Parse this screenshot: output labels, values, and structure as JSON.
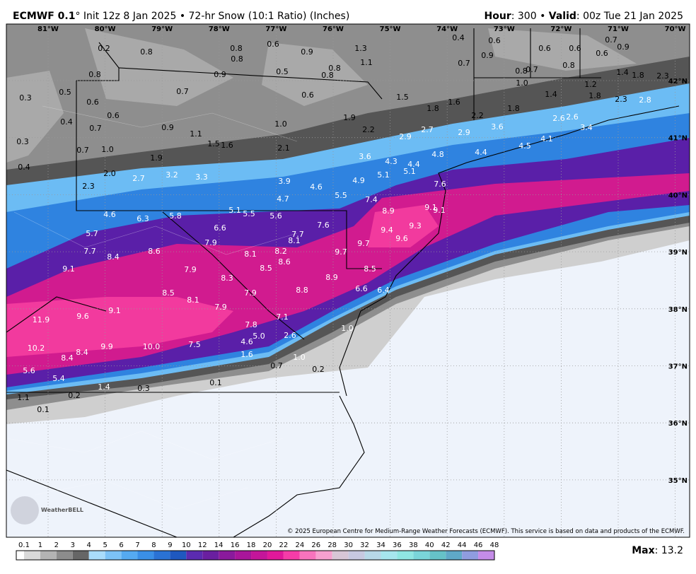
{
  "header": {
    "model": "ECMWF 0.1",
    "details": "° Init 12z 8 Jan 2025 • 72-hr Snow (10:1 Ratio) (Inches)",
    "hour_label": "Hour",
    "hour_value": ": 300 • ",
    "valid_label": "Valid",
    "valid_value": ": 00z Tue 21 Jan 2025"
  },
  "longitudes": [
    "81°W",
    "80°W",
    "79°W",
    "78°W",
    "77°W",
    "76°W",
    "75°W",
    "74°W",
    "73°W",
    "72°W",
    "71°W",
    "70°W"
  ],
  "latitudes": [
    "42°N",
    "41°N",
    "40°N",
    "39°N",
    "38°N",
    "37°N",
    "36°N",
    "35°N"
  ],
  "snow_totals": [
    "0.2",
    "0.8",
    "0.8",
    "0.6",
    "0.8",
    "0.9",
    "1.3",
    "0.4",
    "0.6",
    "0.6",
    "0.6",
    "0.7",
    "0.9",
    "0.6",
    "0.9",
    "0.7",
    "1.1",
    "0.8",
    "0.8",
    "0.5",
    "0.9",
    "0.8",
    "0.8",
    "0.7",
    "0.8",
    "1.4",
    "1.8",
    "2.3",
    "0.3",
    "0.5",
    "0.6",
    "0.7",
    "0.6",
    "1.5",
    "1.0",
    "1.2",
    "1.4",
    "1.8",
    "2.3",
    "2.8",
    "1.6",
    "1.8",
    "1.8",
    "0.6",
    "0.4",
    "0.7",
    "0.9",
    "1.0",
    "1.9",
    "2.2",
    "2.6",
    "2.6",
    "3.4",
    "2.2",
    "2.7",
    "1.1",
    "2.9",
    "2.9",
    "3.6",
    "4.1",
    "0.3",
    "0.7",
    "1.0",
    "1.5",
    "1.6",
    "2.1",
    "4.5",
    "4.4",
    "4.8",
    "1.9",
    "3.6",
    "4.3",
    "4.4",
    "0.4",
    "2.0",
    "3.2",
    "3.3",
    "2.7",
    "5.1",
    "5.1",
    "3.9",
    "4.9",
    "7.6",
    "2.3",
    "4.6",
    "5.5",
    "4.7",
    "7.4",
    "4.6",
    "6.3",
    "5.8",
    "5.1",
    "5.5",
    "5.6",
    "8.9",
    "9.1",
    "9.1",
    "7.6",
    "9.3",
    "6.6",
    "9.4",
    "5.7",
    "7.7",
    "8.1",
    "9.6",
    "7.9",
    "9.7",
    "9.7",
    "7.7",
    "8.6",
    "8.1",
    "8.2",
    "8.4",
    "8.6",
    "8.5",
    "9.1",
    "7.9",
    "8.5",
    "8.3",
    "8.9",
    "8.8",
    "6.6",
    "6.4",
    "7.9",
    "8.5",
    "8.1",
    "7.9",
    "9.1",
    "9.6",
    "11.9",
    "7.1",
    "7.8",
    "1.0",
    "5.0",
    "4.6",
    "2.6",
    "10.2",
    "9.9",
    "10.0",
    "7.5",
    "8.4",
    "8.4",
    "1.6",
    "1.0",
    "0.7",
    "0.2",
    "5.6",
    "5.4",
    "1.4",
    "0.3",
    "0.1",
    "1.1",
    "0.2",
    "0.1"
  ],
  "logo": "WeatherBELL",
  "copyright": "© 2025 European Centre for Medium-Range Weather Forecasts (ECMWF). This service is based on data and products of the ECMWF.",
  "colorbar_labels": [
    "0.1",
    "1",
    "2",
    "3",
    "4",
    "5",
    "6",
    "7",
    "8",
    "9",
    "10",
    "12",
    "14",
    "16",
    "18",
    "20",
    "22",
    "24",
    "26",
    "28",
    "30",
    "32",
    "34",
    "36",
    "38",
    "40",
    "42",
    "44",
    "46",
    "48"
  ],
  "colorbar_colors": [
    "#ffffff",
    "#d9d9d9",
    "#b3b3b3",
    "#8c8c8c",
    "#666666",
    "#a9dcfb",
    "#7cc2f6",
    "#55aaf1",
    "#3a8fe6",
    "#2a72d4",
    "#1f58bf",
    "#5b2bb0",
    "#6a1fa0",
    "#8a1a9c",
    "#a8169a",
    "#c4159a",
    "#e0189a",
    "#f53ca8",
    "#f773bd",
    "#f6a0cf",
    "#d7c6d6",
    "#c7c8e0",
    "#b7d8e8",
    "#a6e6ee",
    "#8fe6e2",
    "#7ad5d9",
    "#66c2c8",
    "#5fa9c8",
    "#8f9ce0",
    "#c48ce8"
  ],
  "max_label": "Max",
  "max_value": ": 13.2"
}
